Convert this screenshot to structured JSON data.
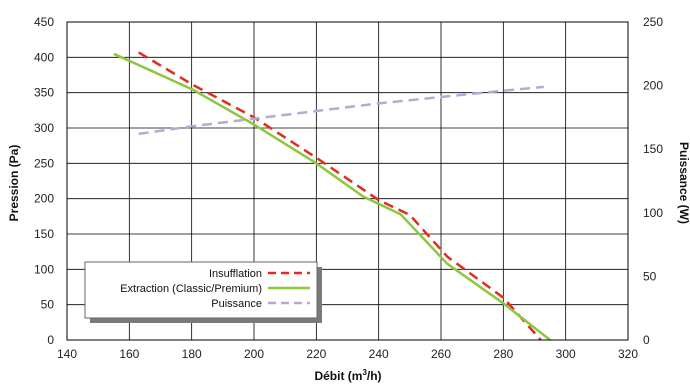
{
  "chart_data": {
    "type": "line",
    "title": "",
    "xlabel": "Débit (m",
    "xlabel_sup": "3",
    "xlabel_end": "/h)",
    "ylabel": "Pression (Pa)",
    "y2label": "Puissance (W)",
    "xlim": [
      140,
      320
    ],
    "ylim": [
      0,
      450
    ],
    "y2lim": [
      0,
      250
    ],
    "x_ticks": [
      "140",
      "160",
      "180",
      "200",
      "220",
      "240",
      "260",
      "280",
      "300",
      "320"
    ],
    "y_ticks": [
      "0",
      "50",
      "100",
      "150",
      "200",
      "250",
      "300",
      "350",
      "400",
      "450"
    ],
    "y2_ticks": [
      "0",
      "50",
      "100",
      "150",
      "200",
      "250"
    ],
    "grid": true,
    "legend_position": "lower-left",
    "series": [
      {
        "name": "Insufflation",
        "axis": "left",
        "color": "#e32b23",
        "dash": "dashed",
        "points": [
          [
            163,
            407
          ],
          [
            180,
            362
          ],
          [
            200,
            315
          ],
          [
            220,
            258
          ],
          [
            240,
            198
          ],
          [
            250,
            177
          ],
          [
            262,
            118
          ],
          [
            280,
            60
          ],
          [
            292,
            0
          ]
        ]
      },
      {
        "name": "Extraction (Classic/Premium)",
        "axis": "left",
        "color": "#8dc63f",
        "dash": "solid",
        "points": [
          [
            155,
            405
          ],
          [
            180,
            355
          ],
          [
            200,
            305
          ],
          [
            220,
            250
          ],
          [
            235,
            203
          ],
          [
            247,
            178
          ],
          [
            262,
            108
          ],
          [
            280,
            52
          ],
          [
            295,
            0
          ]
        ]
      },
      {
        "name": "Puissance",
        "axis": "right",
        "color": "#b7a9d6",
        "dash": "dashed",
        "points": [
          [
            163,
            162
          ],
          [
            180,
            168
          ],
          [
            200,
            174
          ],
          [
            220,
            180
          ],
          [
            240,
            186
          ],
          [
            260,
            191
          ],
          [
            280,
            196
          ],
          [
            293,
            199
          ]
        ]
      }
    ]
  }
}
